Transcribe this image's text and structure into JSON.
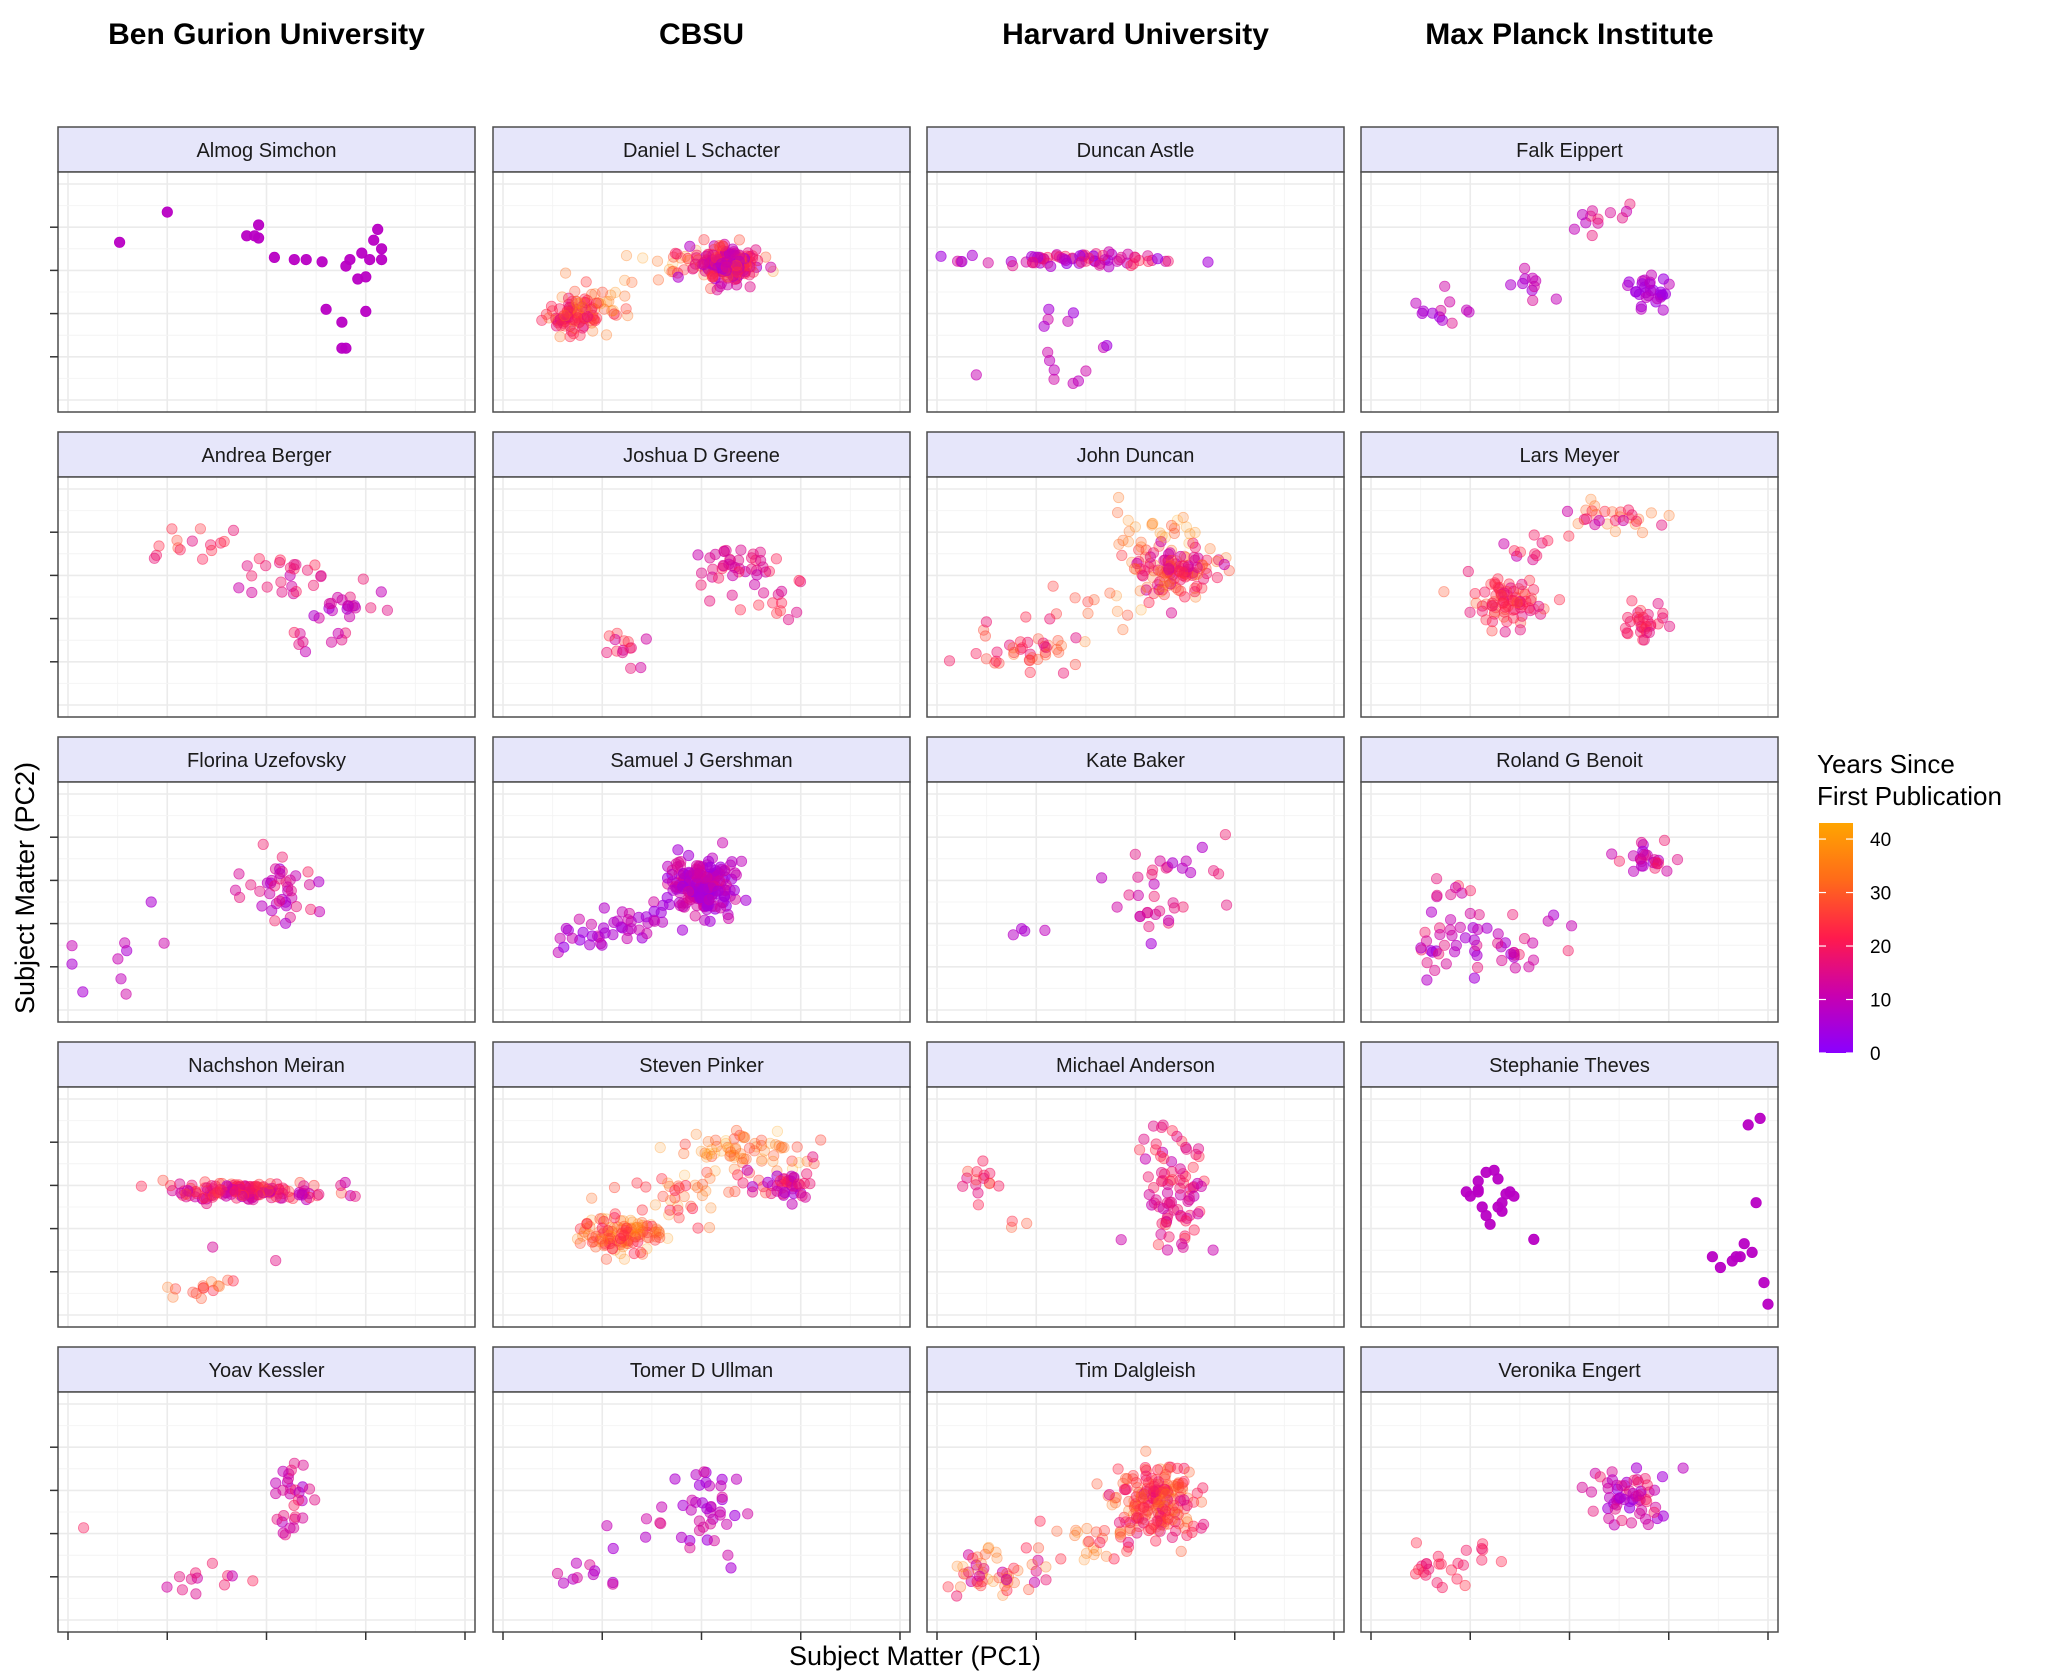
{
  "chart_data": {
    "type": "scatter",
    "column_titles": [
      "Ben Gurion University",
      "CBSU",
      "Harvard University",
      "Max Planck Institute"
    ],
    "xlabel": "Subject Matter (PC1)",
    "ylabel": "Subject Matter (PC2)",
    "xlim": [
      0,
      100
    ],
    "ylim": [
      0,
      100
    ],
    "grid": true,
    "legend": {
      "title_lines": [
        "Years Since",
        "First Publication"
      ],
      "position": "right",
      "range": [
        0,
        43
      ],
      "ticks": [
        "0",
        "10",
        "20",
        "30",
        "40"
      ],
      "tick_values": [
        0,
        10,
        20,
        30,
        40
      ],
      "gradient_colors": [
        "#8a00ff",
        "#c800b0",
        "#ff1a4d",
        "#ff6a1a",
        "#ffa500"
      ]
    },
    "panels": [
      {
        "col": 0,
        "row": 0,
        "name": "Almog Simchon",
        "mode": "points",
        "points": [
          [
            13,
            73,
            8
          ],
          [
            25,
            87,
            8
          ],
          [
            45,
            76,
            8
          ],
          [
            52,
            66,
            8
          ],
          [
            48,
            81,
            8
          ],
          [
            48,
            75,
            8
          ],
          [
            47,
            76,
            8
          ],
          [
            57,
            65,
            8
          ],
          [
            60,
            65,
            8
          ],
          [
            64,
            64,
            8
          ],
          [
            65,
            42,
            8
          ],
          [
            69,
            36,
            8
          ],
          [
            69,
            24,
            8
          ],
          [
            70,
            24,
            8
          ],
          [
            70,
            62,
            8
          ],
          [
            71,
            65,
            8
          ],
          [
            74,
            68,
            8
          ],
          [
            73,
            56,
            8
          ],
          [
            75,
            41,
            8
          ],
          [
            75,
            57,
            8
          ],
          [
            76,
            65,
            8
          ],
          [
            77,
            74,
            8
          ],
          [
            78,
            79,
            8
          ],
          [
            79,
            70,
            8
          ],
          [
            79,
            65,
            8
          ]
        ]
      },
      {
        "col": 1,
        "row": 0,
        "name": "Daniel L Schacter",
        "mode": "clusters",
        "clusters": [
          {
            "x": 18,
            "y": 39,
            "n": 90,
            "sx": 4,
            "sy": 4,
            "a": [
              15,
              35
            ]
          },
          {
            "x": 25,
            "y": 46,
            "n": 25,
            "sx": 6,
            "sy": 5,
            "a": [
              25,
              40
            ]
          },
          {
            "x": 45,
            "y": 65,
            "n": 25,
            "sx": 8,
            "sy": 5,
            "a": [
              20,
              42
            ]
          },
          {
            "x": 56,
            "y": 63,
            "n": 200,
            "sx": 3.5,
            "sy": 4,
            "a": [
              5,
              30
            ]
          }
        ]
      },
      {
        "col": 2,
        "row": 0,
        "name": "Duncan Astle",
        "mode": "clusters",
        "clusters": [
          {
            "x": 35,
            "y": 65,
            "n": 70,
            "sx": 14,
            "sy": 1.5,
            "a": [
              3,
              22
            ]
          },
          {
            "x": 28,
            "y": 40,
            "n": 5,
            "sx": 4,
            "sy": 5,
            "a": [
              4,
              12
            ]
          },
          {
            "x": 30,
            "y": 15,
            "n": 6,
            "sx": 5,
            "sy": 4,
            "a": [
              4,
              12
            ]
          },
          {
            "x": 42,
            "y": 25,
            "n": 4,
            "sx": 8,
            "sy": 5,
            "a": [
              4,
              12
            ]
          }
        ]
      },
      {
        "col": 3,
        "row": 0,
        "name": "Falk Eippert",
        "mode": "clusters",
        "clusters": [
          {
            "x": 17,
            "y": 40,
            "n": 12,
            "sx": 6,
            "sy": 4,
            "a": [
              4,
              15
            ]
          },
          {
            "x": 40,
            "y": 55,
            "n": 10,
            "sx": 4,
            "sy": 8,
            "a": [
              4,
              15
            ]
          },
          {
            "x": 55,
            "y": 85,
            "n": 12,
            "sx": 4,
            "sy": 5,
            "a": [
              8,
              20
            ]
          },
          {
            "x": 69,
            "y": 50,
            "n": 30,
            "sx": 4,
            "sy": 4,
            "a": [
              2,
              10
            ]
          }
        ]
      },
      {
        "col": 0,
        "row": 1,
        "name": "Andrea Berger",
        "mode": "clusters",
        "clusters": [
          {
            "x": 30,
            "y": 73,
            "n": 15,
            "sx": 7,
            "sy": 5,
            "a": [
              15,
              28
            ]
          },
          {
            "x": 55,
            "y": 60,
            "n": 25,
            "sx": 7,
            "sy": 6,
            "a": [
              10,
              22
            ]
          },
          {
            "x": 70,
            "y": 45,
            "n": 20,
            "sx": 5,
            "sy": 4,
            "a": [
              5,
              18
            ]
          },
          {
            "x": 60,
            "y": 30,
            "n": 8,
            "sx": 5,
            "sy": 3,
            "a": [
              8,
              20
            ]
          }
        ]
      },
      {
        "col": 1,
        "row": 1,
        "name": "Joshua D Greene",
        "mode": "clusters",
        "clusters": [
          {
            "x": 60,
            "y": 65,
            "n": 45,
            "sx": 7,
            "sy": 5,
            "a": [
              10,
              22
            ]
          },
          {
            "x": 30,
            "y": 25,
            "n": 14,
            "sx": 4,
            "sy": 4,
            "a": [
              12,
              25
            ]
          },
          {
            "x": 67,
            "y": 45,
            "n": 8,
            "sx": 4,
            "sy": 3,
            "a": [
              14,
              24
            ]
          }
        ]
      },
      {
        "col": 2,
        "row": 1,
        "name": "John Duncan",
        "mode": "clusters",
        "clusters": [
          {
            "x": 60,
            "y": 62,
            "n": 120,
            "sx": 6,
            "sy": 6,
            "a": [
              10,
              35
            ]
          },
          {
            "x": 55,
            "y": 82,
            "n": 25,
            "sx": 6,
            "sy": 4,
            "a": [
              28,
              42
            ]
          },
          {
            "x": 22,
            "y": 25,
            "n": 40,
            "sx": 6,
            "sy": 6,
            "a": [
              15,
              32
            ]
          },
          {
            "x": 42,
            "y": 45,
            "n": 15,
            "sx": 9,
            "sy": 6,
            "a": [
              25,
              40
            ]
          }
        ]
      },
      {
        "col": 3,
        "row": 1,
        "name": "Lars Meyer",
        "mode": "clusters",
        "clusters": [
          {
            "x": 35,
            "y": 47,
            "n": 80,
            "sx": 5,
            "sy": 6,
            "a": [
              15,
              30
            ]
          },
          {
            "x": 60,
            "y": 87,
            "n": 30,
            "sx": 8,
            "sy": 3,
            "a": [
              10,
              35
            ]
          },
          {
            "x": 69,
            "y": 37,
            "n": 30,
            "sx": 3,
            "sy": 5,
            "a": [
              15,
              25
            ]
          },
          {
            "x": 40,
            "y": 75,
            "n": 10,
            "sx": 5,
            "sy": 5,
            "a": [
              10,
              30
            ]
          }
        ]
      },
      {
        "col": 0,
        "row": 2,
        "name": "Florina Uzefovsky",
        "mode": "clusters",
        "clusters": [
          {
            "x": 55,
            "y": 55,
            "n": 40,
            "sx": 5,
            "sy": 9,
            "a": [
              5,
              20
            ]
          },
          {
            "x": 15,
            "y": 37,
            "n": 10,
            "sx": 6,
            "sy": 12,
            "a": [
              4,
              12
            ]
          }
        ]
      },
      {
        "col": 1,
        "row": 2,
        "name": "Samuel J Gershman",
        "mode": "clusters",
        "clusters": [
          {
            "x": 50,
            "y": 57,
            "n": 200,
            "sx": 4,
            "sy": 6,
            "a": [
              3,
              15
            ]
          },
          {
            "x": 25,
            "y": 35,
            "n": 30,
            "sx": 5,
            "sy": 6,
            "a": [
              3,
              12
            ]
          },
          {
            "x": 38,
            "y": 42,
            "n": 15,
            "sx": 6,
            "sy": 6,
            "a": [
              3,
              12
            ]
          }
        ]
      },
      {
        "col": 2,
        "row": 2,
        "name": "Kate Baker",
        "mode": "clusters",
        "clusters": [
          {
            "x": 55,
            "y": 55,
            "n": 35,
            "sx": 8,
            "sy": 15,
            "a": [
              5,
              20
            ]
          },
          {
            "x": 23,
            "y": 38,
            "n": 4,
            "sx": 4,
            "sy": 3,
            "a": [
              3,
              20
            ]
          }
        ]
      },
      {
        "col": 3,
        "row": 2,
        "name": "Roland G Benoit",
        "mode": "clusters",
        "clusters": [
          {
            "x": 30,
            "y": 30,
            "n": 55,
            "sx": 10,
            "sy": 8,
            "a": [
              5,
              20
            ]
          },
          {
            "x": 70,
            "y": 70,
            "n": 25,
            "sx": 4,
            "sy": 3,
            "a": [
              3,
              22
            ]
          },
          {
            "x": 20,
            "y": 55,
            "n": 8,
            "sx": 3,
            "sy": 4,
            "a": [
              10,
              22
            ]
          }
        ]
      },
      {
        "col": 0,
        "row": 3,
        "name": "Nachshon Meiran",
        "mode": "clusters",
        "clusters": [
          {
            "x": 45,
            "y": 57,
            "n": 150,
            "sx": 10,
            "sy": 2.5,
            "a": [
              8,
              28
            ]
          },
          {
            "x": 34,
            "y": 13,
            "n": 15,
            "sx": 5,
            "sy": 2,
            "a": [
              22,
              34
            ]
          },
          {
            "x": 40,
            "y": 28,
            "n": 2,
            "sx": 5,
            "sy": 5,
            "a": [
              10,
              22
            ]
          }
        ]
      },
      {
        "col": 1,
        "row": 3,
        "name": "Steven Pinker",
        "mode": "clusters",
        "clusters": [
          {
            "x": 30,
            "y": 37,
            "n": 120,
            "sx": 5,
            "sy": 4,
            "a": [
              20,
              40
            ]
          },
          {
            "x": 60,
            "y": 75,
            "n": 70,
            "sx": 8,
            "sy": 6,
            "a": [
              25,
              43
            ]
          },
          {
            "x": 72,
            "y": 60,
            "n": 40,
            "sx": 5,
            "sy": 4,
            "a": [
              5,
              25
            ]
          },
          {
            "x": 45,
            "y": 55,
            "n": 40,
            "sx": 10,
            "sy": 8,
            "a": [
              20,
              40
            ]
          }
        ]
      },
      {
        "col": 2,
        "row": 3,
        "name": "Michael Anderson",
        "mode": "clusters",
        "clusters": [
          {
            "x": 60,
            "y": 57,
            "n": 85,
            "sx": 4,
            "sy": 13,
            "a": [
              10,
              25
            ]
          },
          {
            "x": 10,
            "y": 62,
            "n": 15,
            "sx": 3,
            "sy": 5,
            "a": [
              15,
              28
            ]
          },
          {
            "x": 18,
            "y": 42,
            "n": 3,
            "sx": 3,
            "sy": 3,
            "a": [
              20,
              30
            ]
          }
        ]
      },
      {
        "col": 3,
        "row": 3,
        "name": "Stephanie Theves",
        "mode": "points",
        "points": [
          [
            25,
            55,
            8
          ],
          [
            27,
            57,
            8
          ],
          [
            27,
            58,
            8
          ],
          [
            28,
            50,
            8
          ],
          [
            24,
            57,
            8
          ],
          [
            32,
            50,
            8
          ],
          [
            33,
            52,
            8
          ],
          [
            31,
            67,
            8
          ],
          [
            29,
            66,
            8
          ],
          [
            32,
            63,
            8
          ],
          [
            34,
            56,
            8
          ],
          [
            35,
            57,
            8
          ],
          [
            33,
            48,
            8
          ],
          [
            36,
            55,
            8
          ],
          [
            30,
            42,
            8
          ],
          [
            29,
            46,
            8
          ],
          [
            41,
            35,
            8
          ],
          [
            27,
            62,
            8
          ],
          [
            86,
            27,
            8
          ],
          [
            91,
            25,
            8
          ],
          [
            92,
            27,
            8
          ],
          [
            93,
            27,
            8
          ],
          [
            94,
            33,
            8
          ],
          [
            96,
            29,
            8
          ],
          [
            97,
            52,
            8
          ],
          [
            98,
            91,
            8
          ],
          [
            99,
            15,
            8
          ],
          [
            100,
            5,
            8
          ],
          [
            95,
            88,
            8
          ],
          [
            88,
            22,
            8
          ]
        ]
      },
      {
        "col": 0,
        "row": 4,
        "name": "Yoav Kessler",
        "mode": "clusters",
        "clusters": [
          {
            "x": 56,
            "y": 55,
            "n": 30,
            "sx": 3,
            "sy": 10,
            "a": [
              5,
              20
            ]
          },
          {
            "x": 36,
            "y": 18,
            "n": 12,
            "sx": 6,
            "sy": 6,
            "a": [
              10,
              22
            ]
          },
          {
            "x": 2,
            "y": 42,
            "n": 1,
            "sx": 1,
            "sy": 1,
            "a": [
              20,
              22
            ]
          }
        ]
      },
      {
        "col": 1,
        "row": 4,
        "name": "Tomer D Ullman",
        "mode": "clusters",
        "clusters": [
          {
            "x": 53,
            "y": 55,
            "n": 35,
            "sx": 4,
            "sy": 10,
            "a": [
              3,
              15
            ]
          },
          {
            "x": 22,
            "y": 22,
            "n": 10,
            "sx": 4,
            "sy": 5,
            "a": [
              5,
              15
            ]
          },
          {
            "x": 35,
            "y": 45,
            "n": 10,
            "sx": 10,
            "sy": 10,
            "a": [
              5,
              15
            ]
          }
        ]
      },
      {
        "col": 2,
        "row": 4,
        "name": "Tim Dalgleish",
        "mode": "clusters",
        "clusters": [
          {
            "x": 55,
            "y": 55,
            "n": 200,
            "sx": 5,
            "sy": 9,
            "a": [
              15,
              35
            ]
          },
          {
            "x": 15,
            "y": 20,
            "n": 50,
            "sx": 6,
            "sy": 5,
            "a": [
              10,
              40
            ]
          },
          {
            "x": 35,
            "y": 35,
            "n": 25,
            "sx": 8,
            "sy": 7,
            "a": [
              20,
              40
            ]
          }
        ]
      },
      {
        "col": 3,
        "row": 4,
        "name": "Veronika Engert",
        "mode": "clusters",
        "clusters": [
          {
            "x": 65,
            "y": 57,
            "n": 60,
            "sx": 6,
            "sy": 7,
            "a": [
              3,
              20
            ]
          },
          {
            "x": 20,
            "y": 26,
            "n": 25,
            "sx": 6,
            "sy": 4,
            "a": [
              15,
              24
            ]
          }
        ]
      }
    ]
  }
}
